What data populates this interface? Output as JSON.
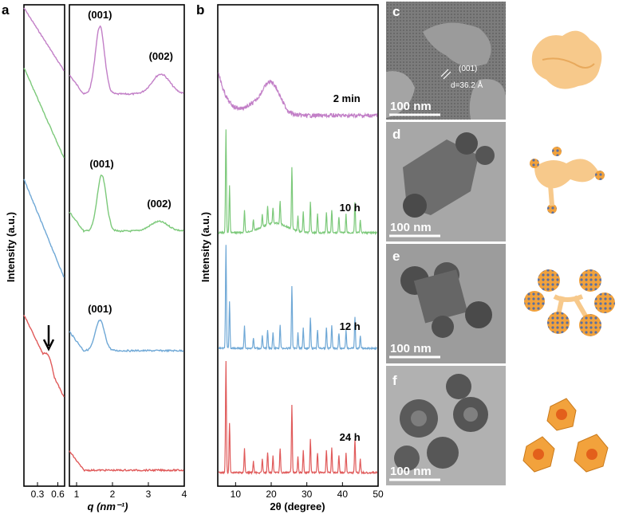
{
  "panel_labels": {
    "a": "a",
    "b": "b",
    "c": "c",
    "d": "d",
    "e": "e",
    "f": "f"
  },
  "colors": {
    "purple": "#c27fc7",
    "green": "#7cc97a",
    "blue": "#6fa8d6",
    "red": "#e05a5a",
    "tem": "#8a8a8a",
    "model": "#f7c98b"
  },
  "chart_data": [
    {
      "type": "line",
      "panel": "a",
      "title": "",
      "ylabel": "Intensity (a.u.)",
      "xlabel": "q (nm⁻¹)",
      "left_ticks": [
        "0.3",
        "0.6"
      ],
      "right_ticks": [
        "1",
        "2",
        "3",
        "4"
      ],
      "left_xlim": [
        0.1,
        0.7
      ],
      "right_xlim": [
        0.8,
        4.0
      ],
      "series": [
        {
          "name": "2 min",
          "color": "purple",
          "peaks": [
            {
              "q": 1.65,
              "label": "(001)"
            },
            {
              "q": 3.35,
              "label": "(002)"
            }
          ]
        },
        {
          "name": "10 h",
          "color": "green",
          "peaks": [
            {
              "q": 1.7,
              "label": "(001)"
            },
            {
              "q": 3.3,
              "label": "(002)"
            }
          ]
        },
        {
          "name": "12 h",
          "color": "blue",
          "peaks": [
            {
              "q": 1.65,
              "label": "(001)"
            }
          ]
        },
        {
          "name": "24 h",
          "color": "red",
          "peaks": []
        }
      ],
      "arrow_q": 0.45
    },
    {
      "type": "line",
      "panel": "b",
      "ylabel": "Intensity (a.u.)",
      "xlabel": "2θ (degree)",
      "xlim": [
        5,
        50
      ],
      "ticks": [
        "10",
        "20",
        "30",
        "40",
        "50"
      ],
      "series": [
        {
          "name": "2 min",
          "label": "2 min",
          "color": "purple"
        },
        {
          "name": "10 h",
          "label": "10 h",
          "color": "green"
        },
        {
          "name": "12 h",
          "label": "12 h",
          "color": "blue"
        },
        {
          "name": "24 h",
          "label": "24 h",
          "color": "red"
        }
      ]
    }
  ],
  "tem": [
    {
      "label": "c",
      "scale": "100 nm",
      "annotation_plane": "(001)",
      "annotation_d": "d=36.2 Å"
    },
    {
      "label": "d",
      "scale": "100 nm"
    },
    {
      "label": "e",
      "scale": "100 nm"
    },
    {
      "label": "f",
      "scale": "100 nm"
    }
  ]
}
